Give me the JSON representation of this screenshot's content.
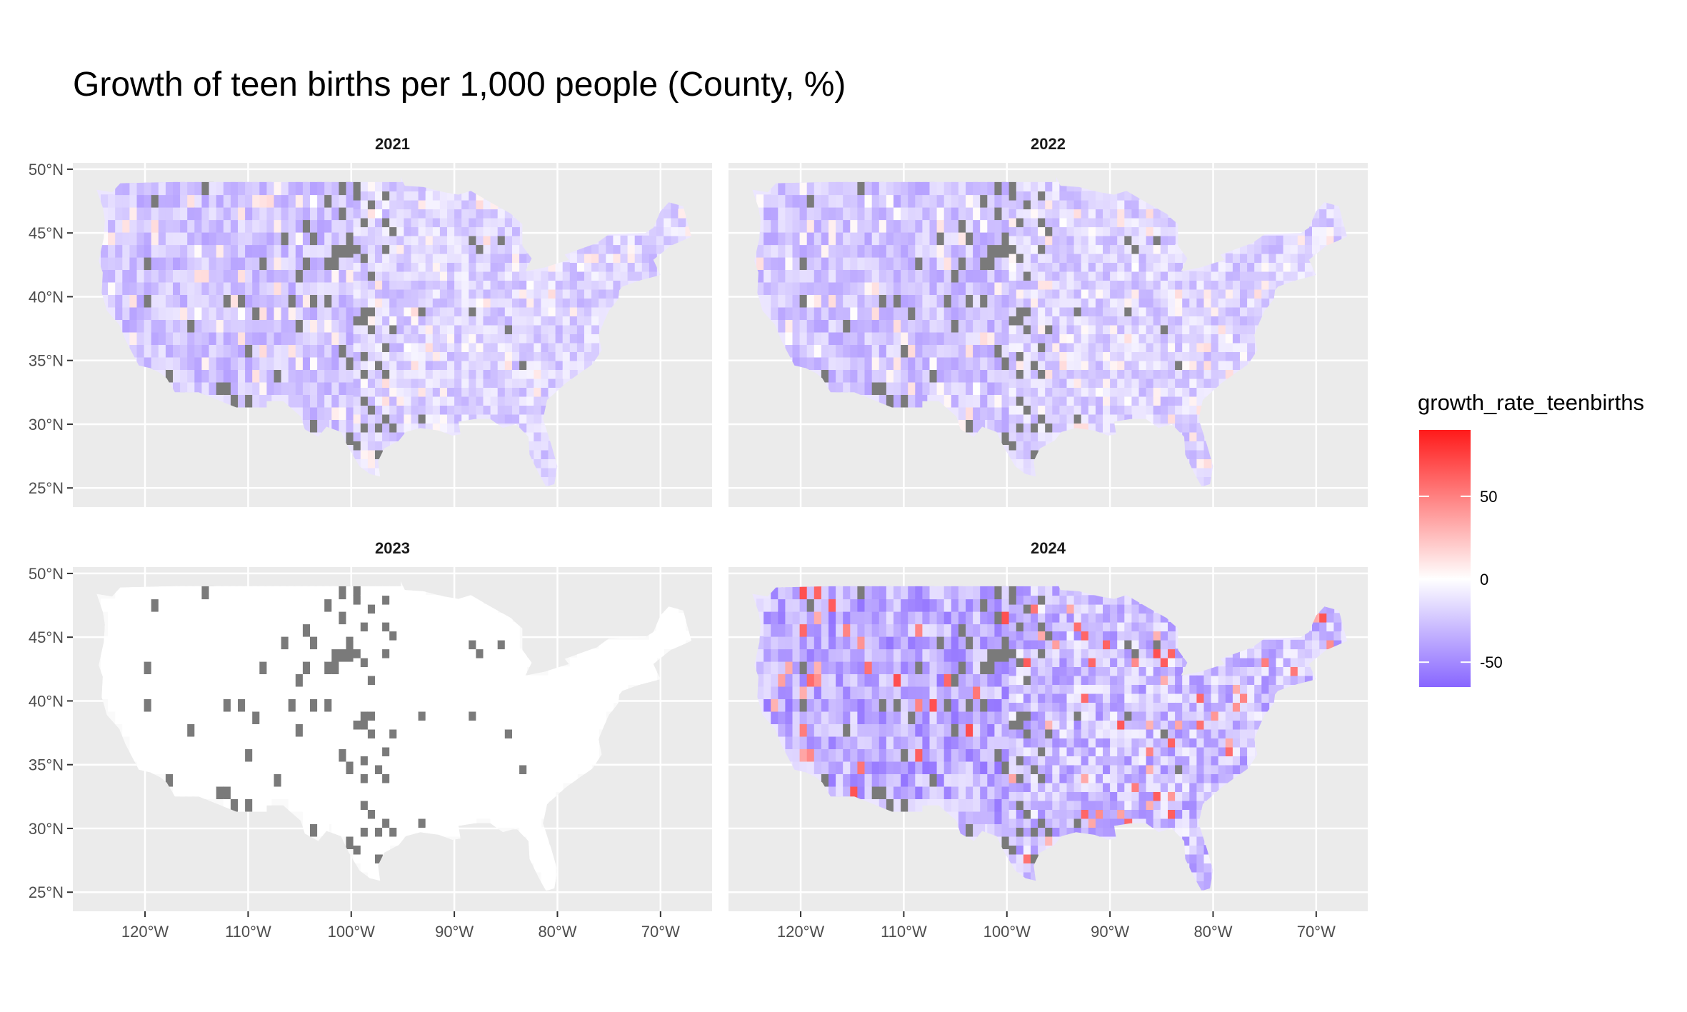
{
  "title": "Growth of teen births per 1,000 people (County, %)",
  "panels": [
    {
      "label": "2021",
      "variant": "mild"
    },
    {
      "label": "2022",
      "variant": "mild"
    },
    {
      "label": "2023",
      "variant": "blank"
    },
    {
      "label": "2024",
      "variant": "strong"
    }
  ],
  "axes": {
    "y_ticks": [
      "50°N",
      "45°N",
      "40°N",
      "35°N",
      "30°N",
      "25°N"
    ],
    "x_ticks": [
      "120°W",
      "110°W",
      "100°W",
      "90°W",
      "80°W",
      "70°W"
    ]
  },
  "legend": {
    "title": "growth_rate_teenbirths",
    "labels": [
      "50",
      "0",
      "-50"
    ],
    "colors": {
      "high": "#ff1a1a",
      "mid": "#ffffff",
      "low": "#8866ff"
    }
  },
  "colors": {
    "panel_bg": "#ebebeb",
    "grid": "#ffffff",
    "missing": "#7a7a7a"
  },
  "chart_data": {
    "type": "choropleth",
    "facets": [
      "2021",
      "2022",
      "2023",
      "2024"
    ],
    "variable": "growth_rate_teenbirths",
    "scale": {
      "low": -65,
      "mid": 0,
      "high": 90
    },
    "legend_breaks": [
      50,
      0,
      -50
    ],
    "xlim": [
      -127,
      -65
    ],
    "ylim": [
      23.5,
      50.5
    ],
    "facet_summary": [
      {
        "year": "2021",
        "typical_range": [
          -30,
          15
        ]
      },
      {
        "year": "2022",
        "typical_range": [
          -30,
          15
        ]
      },
      {
        "year": "2023",
        "typical_range": [
          0,
          0
        ]
      },
      {
        "year": "2024",
        "typical_range": [
          -55,
          90
        ]
      }
    ]
  }
}
